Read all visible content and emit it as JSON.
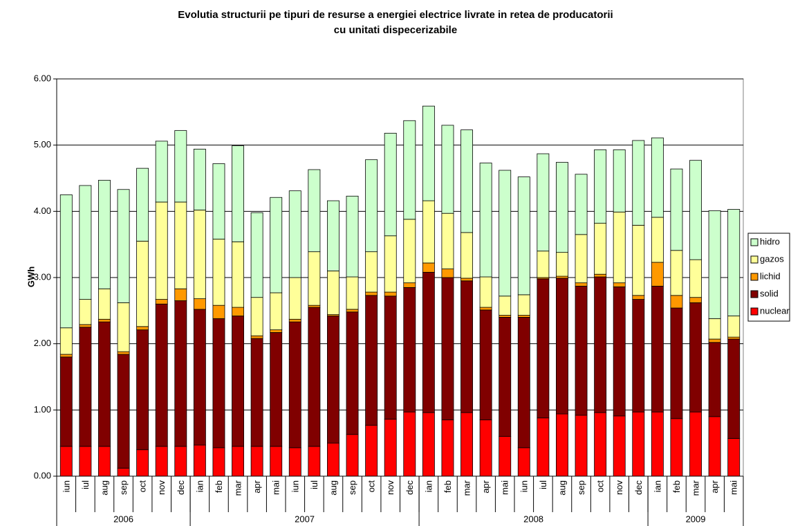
{
  "chart_data": {
    "type": "stacked-bar",
    "title": "Evolutia structurii pe tipuri de resurse a energiei electrice livrate in retea de producatorii cu unitati dispecerizabile",
    "y_label": "GWh",
    "categories": [
      "iun",
      "iul",
      "aug",
      "sep",
      "oct",
      "nov",
      "dec",
      "ian",
      "feb",
      "mar",
      "apr",
      "mai",
      "iun",
      "iul",
      "aug",
      "sep",
      "oct",
      "nov",
      "dec",
      "ian",
      "feb",
      "mar",
      "apr",
      "mai",
      "iun",
      "iul",
      "aug",
      "sep",
      "oct",
      "nov",
      "dec",
      "ian",
      "feb",
      "mar",
      "apr",
      "mai"
    ],
    "groups": [
      {
        "label": "2006",
        "size": 7
      },
      {
        "label": "2007",
        "size": 12
      },
      {
        "label": "2008",
        "size": 12
      },
      {
        "label": "2009",
        "size": 5
      }
    ],
    "series": [
      {
        "name": "nuclear",
        "color": "#ff0000",
        "values": [
          0.45,
          0.45,
          0.45,
          0.12,
          0.4,
          0.45,
          0.45,
          0.47,
          0.43,
          0.45,
          0.45,
          0.45,
          0.43,
          0.45,
          0.5,
          0.63,
          0.77,
          0.86,
          0.97,
          0.96,
          0.85,
          0.96,
          0.85,
          0.6,
          0.43,
          0.88,
          0.94,
          0.92,
          0.96,
          0.91,
          0.97,
          0.97,
          0.87,
          0.97,
          0.9,
          0.57
        ]
      },
      {
        "name": "solid",
        "color": "#800000",
        "values": [
          1.35,
          1.8,
          1.88,
          1.72,
          1.81,
          2.15,
          2.2,
          2.05,
          1.95,
          1.97,
          1.63,
          1.72,
          1.9,
          2.1,
          1.92,
          1.85,
          1.96,
          1.86,
          1.88,
          2.12,
          2.15,
          1.99,
          1.66,
          1.8,
          1.97,
          2.1,
          2.05,
          1.95,
          2.05,
          1.95,
          1.7,
          1.9,
          1.67,
          1.65,
          1.12,
          1.5
        ]
      },
      {
        "name": "lichid",
        "color": "#ff9900",
        "values": [
          0.04,
          0.04,
          0.04,
          0.04,
          0.05,
          0.07,
          0.18,
          0.16,
          0.2,
          0.13,
          0.04,
          0.04,
          0.04,
          0.03,
          0.02,
          0.04,
          0.05,
          0.06,
          0.07,
          0.14,
          0.13,
          0.04,
          0.04,
          0.03,
          0.03,
          0.02,
          0.03,
          0.05,
          0.04,
          0.06,
          0.06,
          0.36,
          0.19,
          0.08,
          0.05,
          0.03
        ]
      },
      {
        "name": "gazos",
        "color": "#ffff99",
        "values": [
          0.4,
          0.38,
          0.46,
          0.74,
          1.29,
          1.47,
          1.31,
          1.34,
          1.0,
          0.99,
          0.58,
          0.56,
          0.63,
          0.81,
          0.66,
          0.49,
          0.61,
          0.85,
          0.96,
          0.94,
          0.84,
          0.69,
          0.46,
          0.29,
          0.31,
          0.4,
          0.36,
          0.73,
          0.77,
          1.07,
          1.06,
          0.68,
          0.68,
          0.57,
          0.31,
          0.32
        ]
      },
      {
        "name": "hidro",
        "color": "#ccffcc",
        "values": [
          2.01,
          1.72,
          1.64,
          1.71,
          1.1,
          0.92,
          1.08,
          0.92,
          1.14,
          1.45,
          1.28,
          1.44,
          1.31,
          1.24,
          1.06,
          1.22,
          1.39,
          1.55,
          1.49,
          1.43,
          1.33,
          1.55,
          1.72,
          1.9,
          1.78,
          1.47,
          1.36,
          0.91,
          1.11,
          0.94,
          1.28,
          1.2,
          1.23,
          1.5,
          1.63,
          1.61
        ]
      }
    ],
    "ylim": [
      0,
      6
    ],
    "yticks": [
      {
        "value": 0,
        "label": "0.00"
      },
      {
        "value": 1,
        "label": "1.00"
      },
      {
        "value": 2,
        "label": "2.00"
      },
      {
        "value": 3,
        "label": "3.00"
      },
      {
        "value": 4,
        "label": "4.00"
      },
      {
        "value": 5,
        "label": "5.00"
      },
      {
        "value": 6,
        "label": "6.00"
      }
    ],
    "grid": true,
    "legend": "right"
  }
}
